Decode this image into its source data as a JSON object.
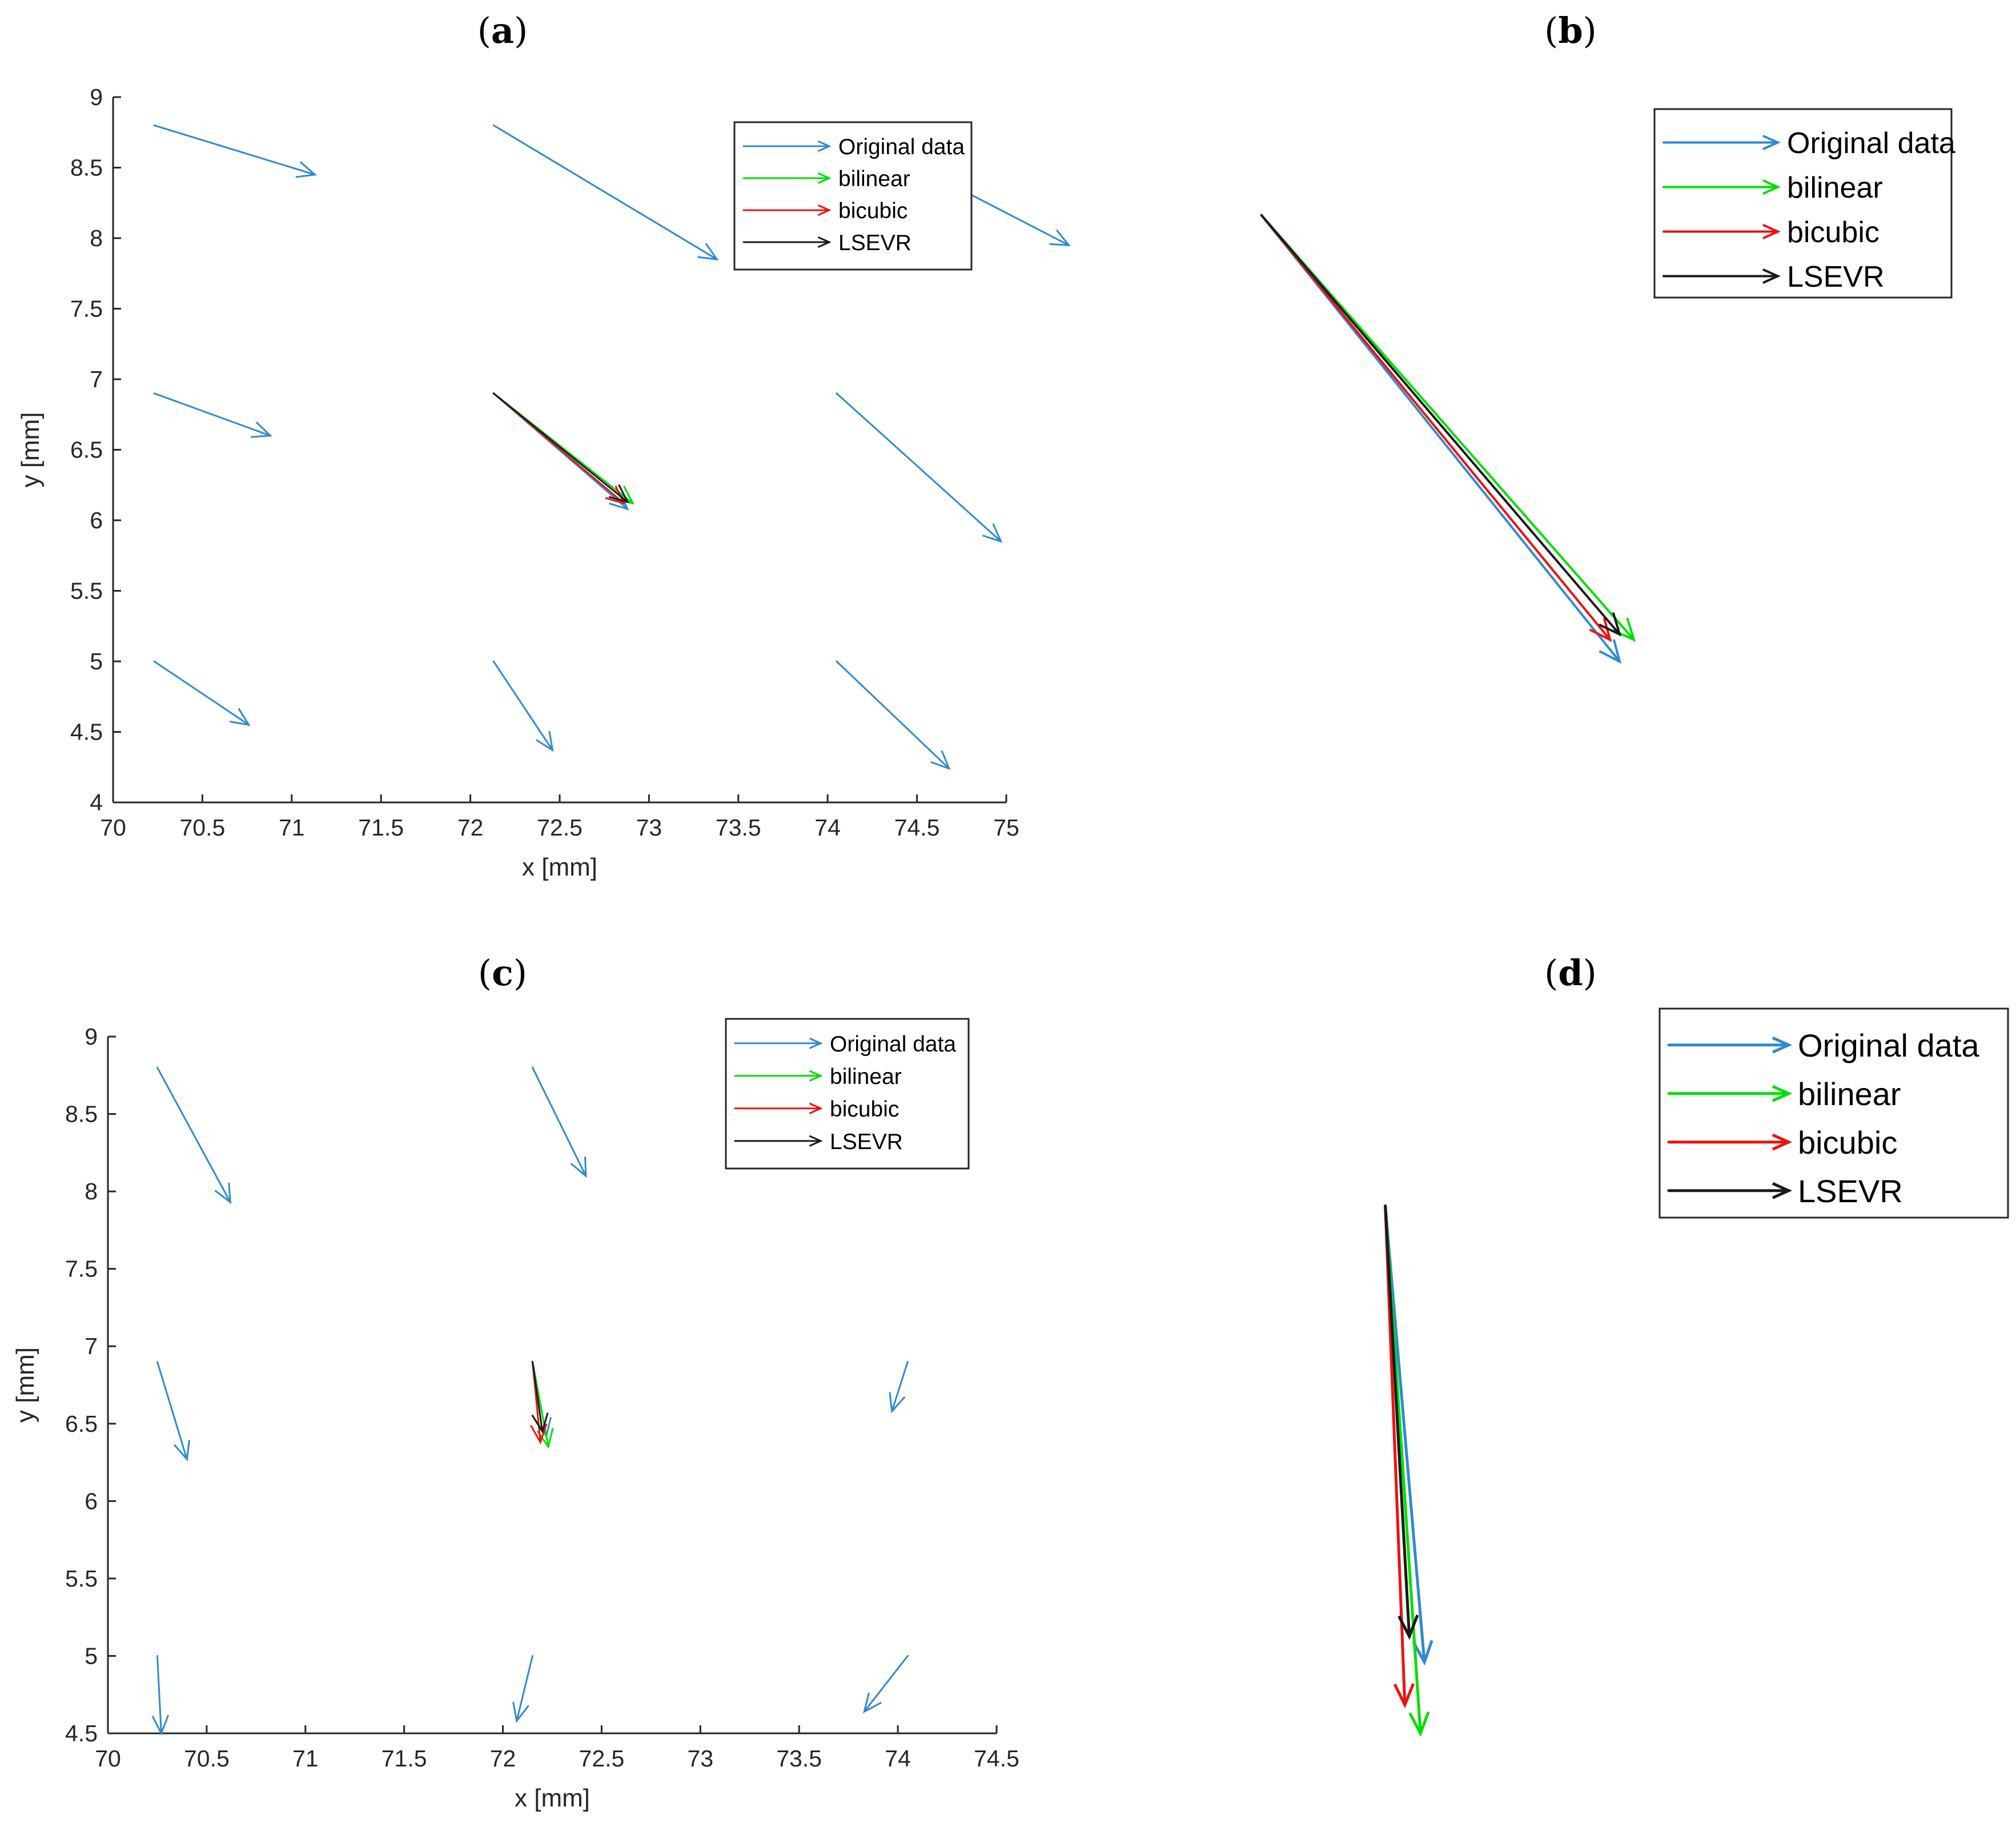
{
  "chart_data": [
    {
      "type": "quiver",
      "panel": "a",
      "title": "(a)",
      "xlabel": "x [mm]",
      "ylabel": "y [mm]",
      "xlim": [
        70,
        75
      ],
      "ylim": [
        4,
        9
      ],
      "xticks": [
        "70",
        "70.5",
        "71",
        "71.5",
        "72",
        "72.5",
        "73",
        "73.5",
        "74",
        "74.5",
        "75"
      ],
      "yticks": [
        "4",
        "4.5",
        "5",
        "5.5",
        "6",
        "6.5",
        "7",
        "7.5",
        "8",
        "8.5",
        "9"
      ],
      "legend_position": "top-right",
      "legend": [
        "Original data",
        "bilinear",
        "bicubic",
        "LSEVR"
      ],
      "series": [
        {
          "name": "Original data",
          "color": "#2f8ad0",
          "arrows": [
            {
              "x": 70.23,
              "y": 8.8,
              "u": 0.9,
              "v": -0.35
            },
            {
              "x": 72.13,
              "y": 8.8,
              "u": 1.25,
              "v": -0.95
            },
            {
              "x": 74.05,
              "y": 8.8,
              "u": 1.3,
              "v": -0.85
            },
            {
              "x": 70.23,
              "y": 6.9,
              "u": 0.65,
              "v": -0.3
            },
            {
              "x": 72.13,
              "y": 6.9,
              "u": 0.75,
              "v": -0.82
            },
            {
              "x": 74.05,
              "y": 6.9,
              "u": 0.92,
              "v": -1.05
            },
            {
              "x": 70.23,
              "y": 5.0,
              "u": 0.53,
              "v": -0.45
            },
            {
              "x": 72.13,
              "y": 5.0,
              "u": 0.33,
              "v": -0.63
            },
            {
              "x": 74.05,
              "y": 5.0,
              "u": 0.63,
              "v": -0.76
            }
          ]
        },
        {
          "name": "bilinear",
          "color": "#00e000",
          "arrows": [
            {
              "x": 72.13,
              "y": 6.9,
              "u": 0.78,
              "v": -0.78
            }
          ]
        },
        {
          "name": "bicubic",
          "color": "#f01010",
          "arrows": [
            {
              "x": 72.13,
              "y": 6.9,
              "u": 0.73,
              "v": -0.78
            }
          ]
        },
        {
          "name": "LSEVR",
          "color": "#1a1a1a",
          "arrows": [
            {
              "x": 72.13,
              "y": 6.9,
              "u": 0.75,
              "v": -0.77
            }
          ]
        }
      ]
    },
    {
      "type": "quiver",
      "panel": "b",
      "title": "(b)",
      "zoom_of": "a",
      "legend_position": "top-right",
      "legend": [
        "Original data",
        "bilinear",
        "bicubic",
        "LSEVR"
      ],
      "xlim": [
        72.0,
        73.1
      ],
      "ylim": [
        5.9,
        6.97
      ],
      "series": [
        {
          "name": "Original data",
          "color": "#2f8ad0",
          "arrows": [
            {
              "x": 72.13,
              "y": 6.9,
              "u": 0.75,
              "v": -0.82
            }
          ]
        },
        {
          "name": "bilinear",
          "color": "#00e000",
          "arrows": [
            {
              "x": 72.13,
              "y": 6.9,
              "u": 0.78,
              "v": -0.78
            }
          ]
        },
        {
          "name": "bicubic",
          "color": "#f01010",
          "arrows": [
            {
              "x": 72.13,
              "y": 6.9,
              "u": 0.73,
              "v": -0.78
            }
          ]
        },
        {
          "name": "LSEVR",
          "color": "#1a1a1a",
          "arrows": [
            {
              "x": 72.13,
              "y": 6.9,
              "u": 0.75,
              "v": -0.77
            }
          ]
        }
      ]
    },
    {
      "type": "quiver",
      "panel": "c",
      "title": "(c)",
      "xlabel": "x [mm]",
      "ylabel": "y [mm]",
      "xlim": [
        70,
        74.5
      ],
      "ylim": [
        4.5,
        9
      ],
      "xticks": [
        "70",
        "70.5",
        "71",
        "71.5",
        "72",
        "72.5",
        "73",
        "73.5",
        "74",
        "74.5"
      ],
      "yticks": [
        "4.5",
        "5",
        "5.5",
        "6",
        "6.5",
        "7",
        "7.5",
        "8",
        "8.5",
        "9"
      ],
      "legend_position": "top-right",
      "legend": [
        "Original data",
        "bilinear",
        "bicubic",
        "LSEVR"
      ],
      "series": [
        {
          "name": "Original data",
          "color": "#2f8ad0",
          "arrows": [
            {
              "x": 70.25,
              "y": 8.8,
              "u": 0.37,
              "v": -0.87
            },
            {
              "x": 72.15,
              "y": 8.8,
              "u": 0.27,
              "v": -0.7
            },
            {
              "x": 70.25,
              "y": 6.9,
              "u": 0.15,
              "v": -0.63
            },
            {
              "x": 72.15,
              "y": 6.9,
              "u": 0.07,
              "v": -0.48
            },
            {
              "x": 74.05,
              "y": 6.9,
              "u": -0.08,
              "v": -0.32
            },
            {
              "x": 70.25,
              "y": 5.0,
              "u": 0.02,
              "v": -0.5
            },
            {
              "x": 72.15,
              "y": 5.0,
              "u": -0.08,
              "v": -0.42
            },
            {
              "x": 74.05,
              "y": 5.0,
              "u": -0.22,
              "v": -0.36
            }
          ]
        },
        {
          "name": "bilinear",
          "color": "#00e000",
          "arrows": [
            {
              "x": 72.15,
              "y": 6.9,
              "u": 0.08,
              "v": -0.55
            }
          ]
        },
        {
          "name": "bicubic",
          "color": "#f01010",
          "arrows": [
            {
              "x": 72.15,
              "y": 6.9,
              "u": 0.04,
              "v": -0.52
            }
          ]
        },
        {
          "name": "LSEVR",
          "color": "#1a1a1a",
          "arrows": [
            {
              "x": 72.15,
              "y": 6.9,
              "u": 0.05,
              "v": -0.45
            }
          ]
        }
      ]
    },
    {
      "type": "quiver",
      "panel": "d",
      "title": "(d)",
      "zoom_of": "c",
      "legend_position": "top-right",
      "legend": [
        "Original data",
        "bilinear",
        "bicubic",
        "LSEVR"
      ],
      "xlim": [
        71.95,
        72.41
      ],
      "ylim": [
        6.33,
        6.955
      ],
      "series": [
        {
          "name": "Original data",
          "color": "#2f8ad0",
          "arrows": [
            {
              "x": 72.15,
              "y": 6.9,
              "u": 0.07,
              "v": -0.48
            }
          ]
        },
        {
          "name": "bilinear",
          "color": "#00e000",
          "arrows": [
            {
              "x": 72.15,
              "y": 6.9,
              "u": 0.063,
              "v": -0.555
            }
          ]
        },
        {
          "name": "bicubic",
          "color": "#f01010",
          "arrows": [
            {
              "x": 72.15,
              "y": 6.9,
              "u": 0.035,
              "v": -0.525
            }
          ]
        },
        {
          "name": "LSEVR",
          "color": "#1a1a1a",
          "arrows": [
            {
              "x": 72.15,
              "y": 6.9,
              "u": 0.043,
              "v": -0.453
            }
          ]
        }
      ]
    }
  ]
}
